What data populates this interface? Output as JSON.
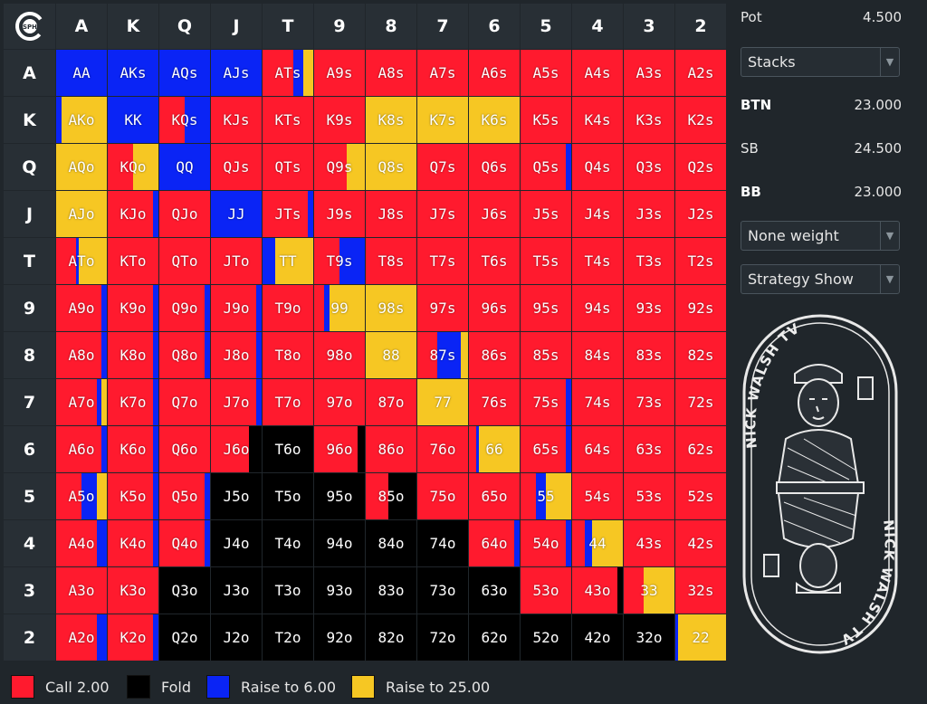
{
  "ranks": [
    "A",
    "K",
    "Q",
    "J",
    "T",
    "9",
    "8",
    "7",
    "6",
    "5",
    "4",
    "3",
    "2"
  ],
  "logo_text": "SPH",
  "colors": {
    "call": "#ff1a2e",
    "fold": "#000000",
    "raise_small": "#0a24f5",
    "raise_big": "#f6c723",
    "header_bg": "#282f35",
    "page_bg": "#20262b"
  },
  "matrix": {
    "note": "",
    "overrides": {
      "AA": [
        0,
        0,
        1,
        0
      ],
      "AKs": [
        0,
        0,
        1,
        0
      ],
      "AQs": [
        0,
        0,
        1,
        0
      ],
      "AJs": [
        0,
        0,
        1,
        0
      ],
      "ATs": [
        0.6,
        0,
        0.2,
        0.2
      ],
      "AKo": [
        0,
        0,
        0.1,
        0.9
      ],
      "KK": [
        0,
        0,
        1,
        0
      ],
      "KQs": [
        0.5,
        0,
        0.5,
        0
      ],
      "K8s": [
        0,
        0,
        0,
        1
      ],
      "K7s": [
        0,
        0,
        0,
        1
      ],
      "K6s": [
        0,
        0,
        0,
        1
      ],
      "AQo": [
        0,
        0,
        0,
        1
      ],
      "KQo": [
        0.5,
        0,
        0,
        0.5
      ],
      "QQ": [
        0,
        0,
        1,
        0
      ],
      "Q9s": [
        0.65,
        0,
        0,
        0.35
      ],
      "Q8s": [
        0,
        0,
        0,
        1
      ],
      "Q5s": [
        0.9,
        0,
        0.1,
        0
      ],
      "AJo": [
        0,
        0,
        0,
        1
      ],
      "KJo": [
        0.9,
        0,
        0.1,
        0
      ],
      "JJ": [
        0,
        0,
        1,
        0
      ],
      "JTs": [
        0.9,
        0,
        0.1,
        0
      ],
      "ATo": [
        0.4,
        0,
        0.05,
        0.55
      ],
      "TT": [
        0,
        0,
        0.25,
        0.75
      ],
      "T9s": [
        0.5,
        0,
        0.5,
        0
      ],
      "99": [
        0.2,
        0,
        0.1,
        0.7
      ],
      "98s": [
        0,
        0,
        0,
        1
      ],
      "88": [
        0,
        0,
        0,
        1
      ],
      "87s": [
        0.4,
        0,
        0.45,
        0.15
      ],
      "77": [
        0,
        0,
        0,
        1
      ],
      "66": [
        0.15,
        0,
        0.05,
        0.8
      ],
      "55": [
        0.3,
        0,
        0.2,
        0.5
      ],
      "44": [
        0.25,
        0,
        0.15,
        0.6
      ],
      "33": [
        0.4,
        0,
        0,
        0.6
      ],
      "22": [
        0,
        0,
        0.05,
        0.95
      ],
      "A9o": [
        0.9,
        0,
        0.1,
        0
      ],
      "K9o": [
        0.9,
        0,
        0.1,
        0
      ],
      "Q9o": [
        0.9,
        0,
        0.1,
        0
      ],
      "J9o": [
        0.9,
        0,
        0.1,
        0
      ],
      "A8o": [
        0.9,
        0,
        0.1,
        0
      ],
      "K8o": [
        0.9,
        0,
        0.1,
        0
      ],
      "Q8o": [
        0.9,
        0,
        0.1,
        0
      ],
      "J8o": [
        0.9,
        0,
        0.1,
        0
      ],
      "A7o": [
        0.8,
        0,
        0.1,
        0.1
      ],
      "K7o": [
        0.9,
        0,
        0.1,
        0
      ],
      "J7o": [
        0.9,
        0,
        0.1,
        0
      ],
      "A6o": [
        0.9,
        0,
        0.1,
        0
      ],
      "K6o": [
        0.9,
        0,
        0.1,
        0
      ],
      "J6o": [
        0.75,
        0.25,
        0,
        0
      ],
      "A5o": [
        0.5,
        0,
        0.3,
        0.2
      ],
      "K5o": [
        0.9,
        0,
        0.1,
        0
      ],
      "Q5o": [
        0.9,
        0,
        0.1,
        0
      ],
      "A4o": [
        0.8,
        0,
        0.2,
        0
      ],
      "K4o": [
        0.9,
        0,
        0.1,
        0
      ],
      "Q4o": [
        0.9,
        0,
        0.1,
        0
      ],
      "A2o": [
        0.8,
        0,
        0.2,
        0
      ],
      "K2o": [
        0.9,
        0,
        0.1,
        0
      ],
      "75s": [
        0.9,
        0,
        0.1,
        0
      ],
      "65s": [
        0.9,
        0,
        0.1,
        0
      ],
      "96o": [
        0.85,
        0.15,
        0,
        0
      ],
      "85o": [
        0.45,
        0.55,
        0,
        0
      ],
      "64o": [
        0.9,
        0,
        0.1,
        0
      ],
      "54o": [
        0.9,
        0,
        0.1,
        0
      ],
      "53o": [
        1,
        0,
        0,
        0
      ],
      "43o": [
        0.9,
        0.1,
        0,
        0
      ],
      "T6o": [
        0,
        1,
        0,
        0
      ],
      "T5o": [
        0,
        1,
        0,
        0
      ],
      "J5o": [
        0,
        1,
        0,
        0
      ]
    },
    "fold": [
      "Q3o",
      "Q2o",
      "J5o",
      "J4o",
      "J3o",
      "J2o",
      "T6o",
      "T5o",
      "T4o",
      "T3o",
      "T2o",
      "95o",
      "94o",
      "93o",
      "92o",
      "84o",
      "83o",
      "82o",
      "74o",
      "73o",
      "72o",
      "63o",
      "62o",
      "52o",
      "42o",
      "32o"
    ]
  },
  "panel": {
    "pot_label": "Pot",
    "pot_value": "4.500",
    "stacks_select": "Stacks",
    "btn_label": "BTN",
    "btn_value": "23.000",
    "sb_label": "SB",
    "sb_value": "24.500",
    "bb_label": "BB",
    "bb_value": "23.000",
    "weight_select": "None weight",
    "strategy_select": "Strategy Show",
    "art_text_top": "NICK WALSH TV",
    "art_text_bottom": "NICK WALSH TV"
  },
  "legend": [
    {
      "label": "Call 2.00",
      "color": "#ff1a2e"
    },
    {
      "label": "Fold",
      "color": "#000000"
    },
    {
      "label": "Raise to 6.00",
      "color": "#0a24f5"
    },
    {
      "label": "Raise to 25.00",
      "color": "#f6c723"
    }
  ]
}
